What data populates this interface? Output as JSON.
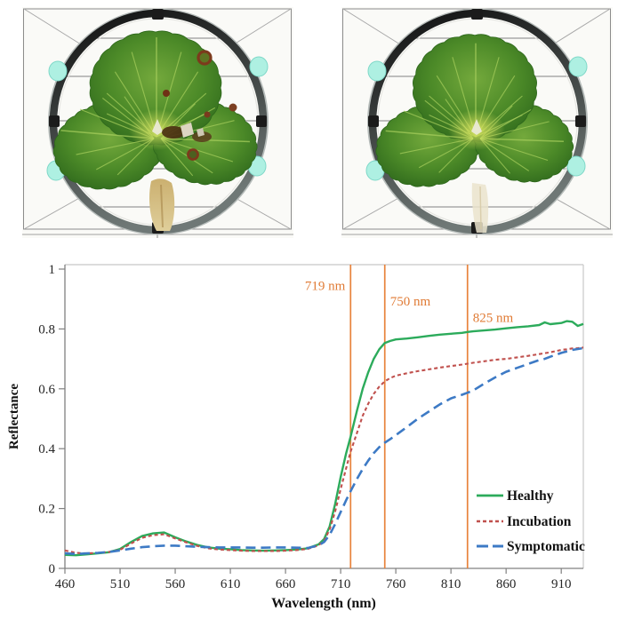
{
  "figure": {
    "panels": {
      "left": {
        "name": "leaf-sample-photo-symptomatic",
        "lesions_visible": true,
        "stem": "wrapped-tan",
        "colors": {
          "background": "#fafaf7",
          "frame": "#8c8c8c",
          "ring": "#1c1c1c",
          "ring_highlight": "#b6bcba",
          "wire": "#9a9a9a",
          "clip": "#aef0e2",
          "leaf_dark": "#2e681c",
          "leaf_mid": "#4c8a28",
          "leaf_light": "#74a93c",
          "vein": "#a8cf5d",
          "center_glow": "#cede5e",
          "lesion_ring": "#7c3a1c",
          "lesion_dark": "#4a2e12",
          "stem_wrap": "#d9c488"
        }
      },
      "right": {
        "name": "leaf-sample-photo-healthy",
        "lesions_visible": false,
        "stem": "faint",
        "colors": {
          "background": "#fafaf7",
          "frame": "#8c8c8c",
          "ring": "#1c1c1c",
          "ring_highlight": "#b6bcba",
          "wire": "#9a9a9a",
          "clip": "#aef0e2",
          "leaf_dark": "#2e681c",
          "leaf_mid": "#4c8a28",
          "leaf_light": "#74a93c",
          "vein": "#a8cf5d",
          "center_glow": "#d6e25e",
          "stem_faint": "#eae3cc"
        }
      }
    }
  },
  "chart_data": {
    "type": "line",
    "title": "",
    "xlabel": "Wavelength (nm)",
    "ylabel": "Reflectance",
    "xlim": [
      460,
      930
    ],
    "ylim": [
      0,
      1
    ],
    "x_ticks": [
      460,
      510,
      560,
      610,
      660,
      710,
      760,
      810,
      860,
      910
    ],
    "y_ticks": [
      0,
      0.2,
      0.4,
      0.6,
      0.8,
      1
    ],
    "y_tick_labels": [
      "0",
      "0.2",
      "0.4",
      "0.6",
      "0.8",
      "1"
    ],
    "grid": false,
    "legend_position": "inside lower right",
    "colors": {
      "axis": "#808080",
      "border": "#c8c8c8",
      "tick_text": "#262626"
    },
    "x": [
      460,
      470,
      480,
      490,
      500,
      510,
      520,
      530,
      540,
      550,
      560,
      570,
      580,
      590,
      600,
      610,
      620,
      630,
      640,
      650,
      660,
      670,
      680,
      690,
      695,
      700,
      705,
      710,
      715,
      719,
      725,
      730,
      735,
      740,
      745,
      750,
      755,
      760,
      770,
      780,
      790,
      800,
      810,
      820,
      825,
      830,
      840,
      850,
      860,
      870,
      880,
      890,
      895,
      900,
      910,
      915,
      920,
      925,
      930
    ],
    "series": [
      {
        "name": "Healthy",
        "color": "#2cab5b",
        "dash": "solid",
        "width": 2.4,
        "values": [
          0.045,
          0.044,
          0.047,
          0.05,
          0.054,
          0.065,
          0.088,
          0.108,
          0.117,
          0.12,
          0.104,
          0.09,
          0.078,
          0.07,
          0.066,
          0.064,
          0.061,
          0.06,
          0.059,
          0.06,
          0.061,
          0.063,
          0.067,
          0.08,
          0.098,
          0.14,
          0.215,
          0.305,
          0.385,
          0.44,
          0.53,
          0.6,
          0.655,
          0.7,
          0.732,
          0.753,
          0.76,
          0.765,
          0.768,
          0.772,
          0.777,
          0.781,
          0.784,
          0.787,
          0.79,
          0.792,
          0.795,
          0.798,
          0.802,
          0.806,
          0.809,
          0.813,
          0.822,
          0.816,
          0.82,
          0.826,
          0.824,
          0.81,
          0.817
        ]
      },
      {
        "name": "Incubation",
        "color": "#c0504d",
        "dash": "short-dash",
        "width": 2.1,
        "values": [
          0.06,
          0.052,
          0.05,
          0.052,
          0.055,
          0.062,
          0.083,
          0.102,
          0.111,
          0.114,
          0.1,
          0.087,
          0.075,
          0.067,
          0.063,
          0.061,
          0.059,
          0.058,
          0.058,
          0.058,
          0.059,
          0.061,
          0.065,
          0.077,
          0.093,
          0.13,
          0.19,
          0.265,
          0.335,
          0.39,
          0.455,
          0.51,
          0.55,
          0.583,
          0.607,
          0.625,
          0.636,
          0.644,
          0.652,
          0.659,
          0.665,
          0.671,
          0.676,
          0.681,
          0.684,
          0.687,
          0.692,
          0.697,
          0.7,
          0.705,
          0.71,
          0.716,
          0.719,
          0.722,
          0.73,
          0.732,
          0.735,
          0.736,
          0.738
        ]
      },
      {
        "name": "Symptomatic",
        "color": "#3d7ac5",
        "dash": "long-dash",
        "width": 2.6,
        "values": [
          0.05,
          0.048,
          0.05,
          0.052,
          0.055,
          0.06,
          0.066,
          0.071,
          0.074,
          0.076,
          0.076,
          0.074,
          0.072,
          0.071,
          0.07,
          0.07,
          0.07,
          0.069,
          0.069,
          0.07,
          0.07,
          0.069,
          0.068,
          0.077,
          0.088,
          0.112,
          0.148,
          0.188,
          0.228,
          0.258,
          0.3,
          0.332,
          0.36,
          0.385,
          0.405,
          0.42,
          0.432,
          0.445,
          0.472,
          0.5,
          0.524,
          0.548,
          0.568,
          0.58,
          0.587,
          0.594,
          0.617,
          0.638,
          0.657,
          0.67,
          0.683,
          0.696,
          0.7,
          0.707,
          0.72,
          0.725,
          0.73,
          0.733,
          0.736
        ]
      }
    ],
    "annotations": {
      "line_color": "#e8833c",
      "text_color": "#e07b35",
      "lines": [
        {
          "label": "719 nm",
          "x": 719,
          "label_side": "left",
          "label_y": 0.945
        },
        {
          "label": "750 nm",
          "x": 750,
          "label_side": "right",
          "label_y": 0.893
        },
        {
          "label": "825 nm",
          "x": 825,
          "label_side": "right",
          "label_y": 0.838
        }
      ]
    },
    "legend": {
      "labels": [
        "Healthy",
        "Incubation",
        "Symptomatic"
      ]
    }
  }
}
